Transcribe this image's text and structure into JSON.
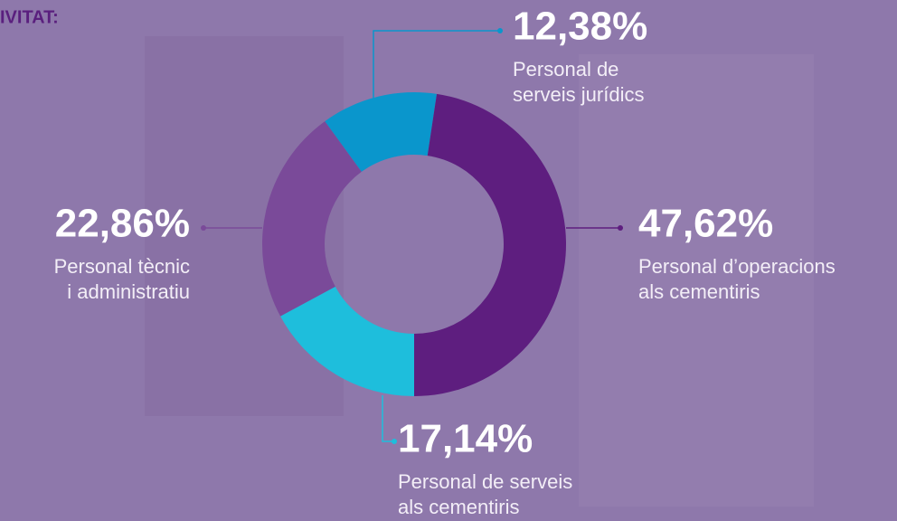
{
  "chart_data": {
    "type": "donut",
    "title": "IVITAT:",
    "categories": [
      [
        "Personal de",
        "serveis jurídics"
      ],
      [
        "Personal d’operacions",
        "als cementiris"
      ],
      [
        "Personal de serveis",
        "als cementiris"
      ],
      [
        "Personal tècnic",
        "i administratiu"
      ]
    ],
    "values": [
      12.38,
      47.62,
      17.14,
      22.86
    ],
    "value_labels": [
      "12,38%",
      "47,62%",
      "17,14%",
      "22,86%"
    ],
    "colors": [
      "#0a96cc",
      "#5e1e7f",
      "#1ebedc",
      "#7a4a99"
    ]
  }
}
